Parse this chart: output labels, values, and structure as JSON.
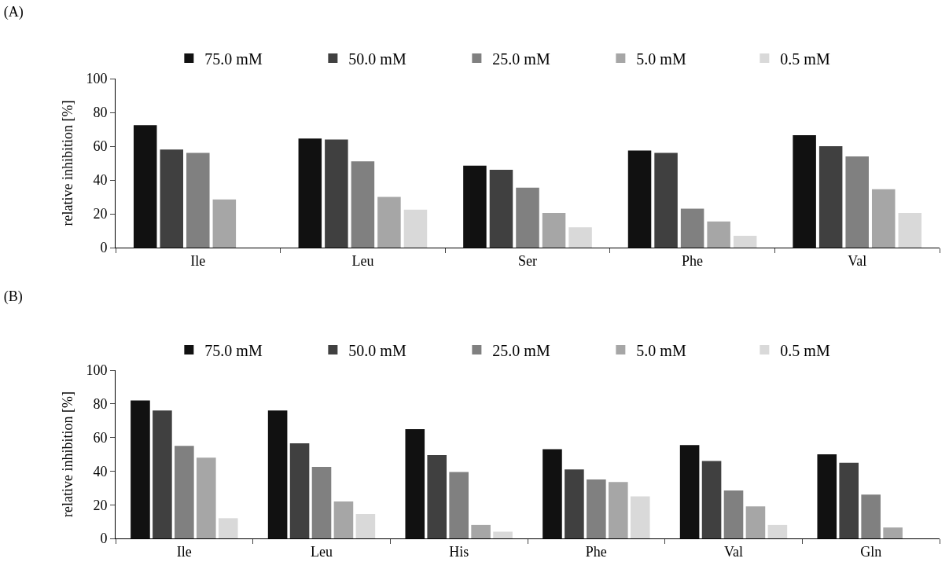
{
  "chart_data": [
    {
      "type": "bar",
      "title": "(A)",
      "ylabel": "relative inhibition [%]",
      "categories": [
        "Ile",
        "Leu",
        "Ser",
        "Phe",
        "Val"
      ],
      "ylim": [
        0,
        100
      ],
      "yticks": [
        0,
        20,
        40,
        60,
        80,
        100
      ],
      "grid": false,
      "legend": "top",
      "series": [
        {
          "name": "75.0 mM",
          "color": "#111111",
          "values": [
            72.5,
            64.5,
            48.5,
            57.5,
            66.5
          ]
        },
        {
          "name": "50.0 mM",
          "color": "#404040",
          "values": [
            58,
            64,
            46,
            56,
            60
          ]
        },
        {
          "name": "25.0 mM",
          "color": "#808080",
          "values": [
            56,
            51,
            35.5,
            23,
            54
          ]
        },
        {
          "name": "5.0 mM",
          "color": "#a6a6a6",
          "values": [
            28.5,
            30,
            20.5,
            15.5,
            34.5
          ]
        },
        {
          "name": "0.5 mM",
          "color": "#d9d9d9",
          "values": [
            null,
            22.5,
            12,
            7,
            20.5
          ]
        }
      ]
    },
    {
      "type": "bar",
      "title": "(B)",
      "ylabel": "relative inhibition [%]",
      "categories": [
        "Ile",
        "Leu",
        "His",
        "Phe",
        "Val",
        "Gln"
      ],
      "ylim": [
        0,
        100
      ],
      "yticks": [
        0,
        20,
        40,
        60,
        80,
        100
      ],
      "grid": false,
      "legend": "top",
      "series": [
        {
          "name": "75.0 mM",
          "color": "#111111",
          "values": [
            82,
            76,
            65,
            53,
            55.5,
            50
          ]
        },
        {
          "name": "50.0 mM",
          "color": "#404040",
          "values": [
            76,
            56.5,
            49.5,
            41,
            46,
            45
          ]
        },
        {
          "name": "25.0 mM",
          "color": "#808080",
          "values": [
            55,
            42.5,
            39.5,
            35,
            28.5,
            26
          ]
        },
        {
          "name": "5.0 mM",
          "color": "#a6a6a6",
          "values": [
            48,
            22,
            8,
            33.5,
            19,
            6.5
          ]
        },
        {
          "name": "0.5 mM",
          "color": "#d9d9d9",
          "values": [
            12,
            14.5,
            4,
            25,
            8,
            null
          ]
        }
      ]
    }
  ]
}
